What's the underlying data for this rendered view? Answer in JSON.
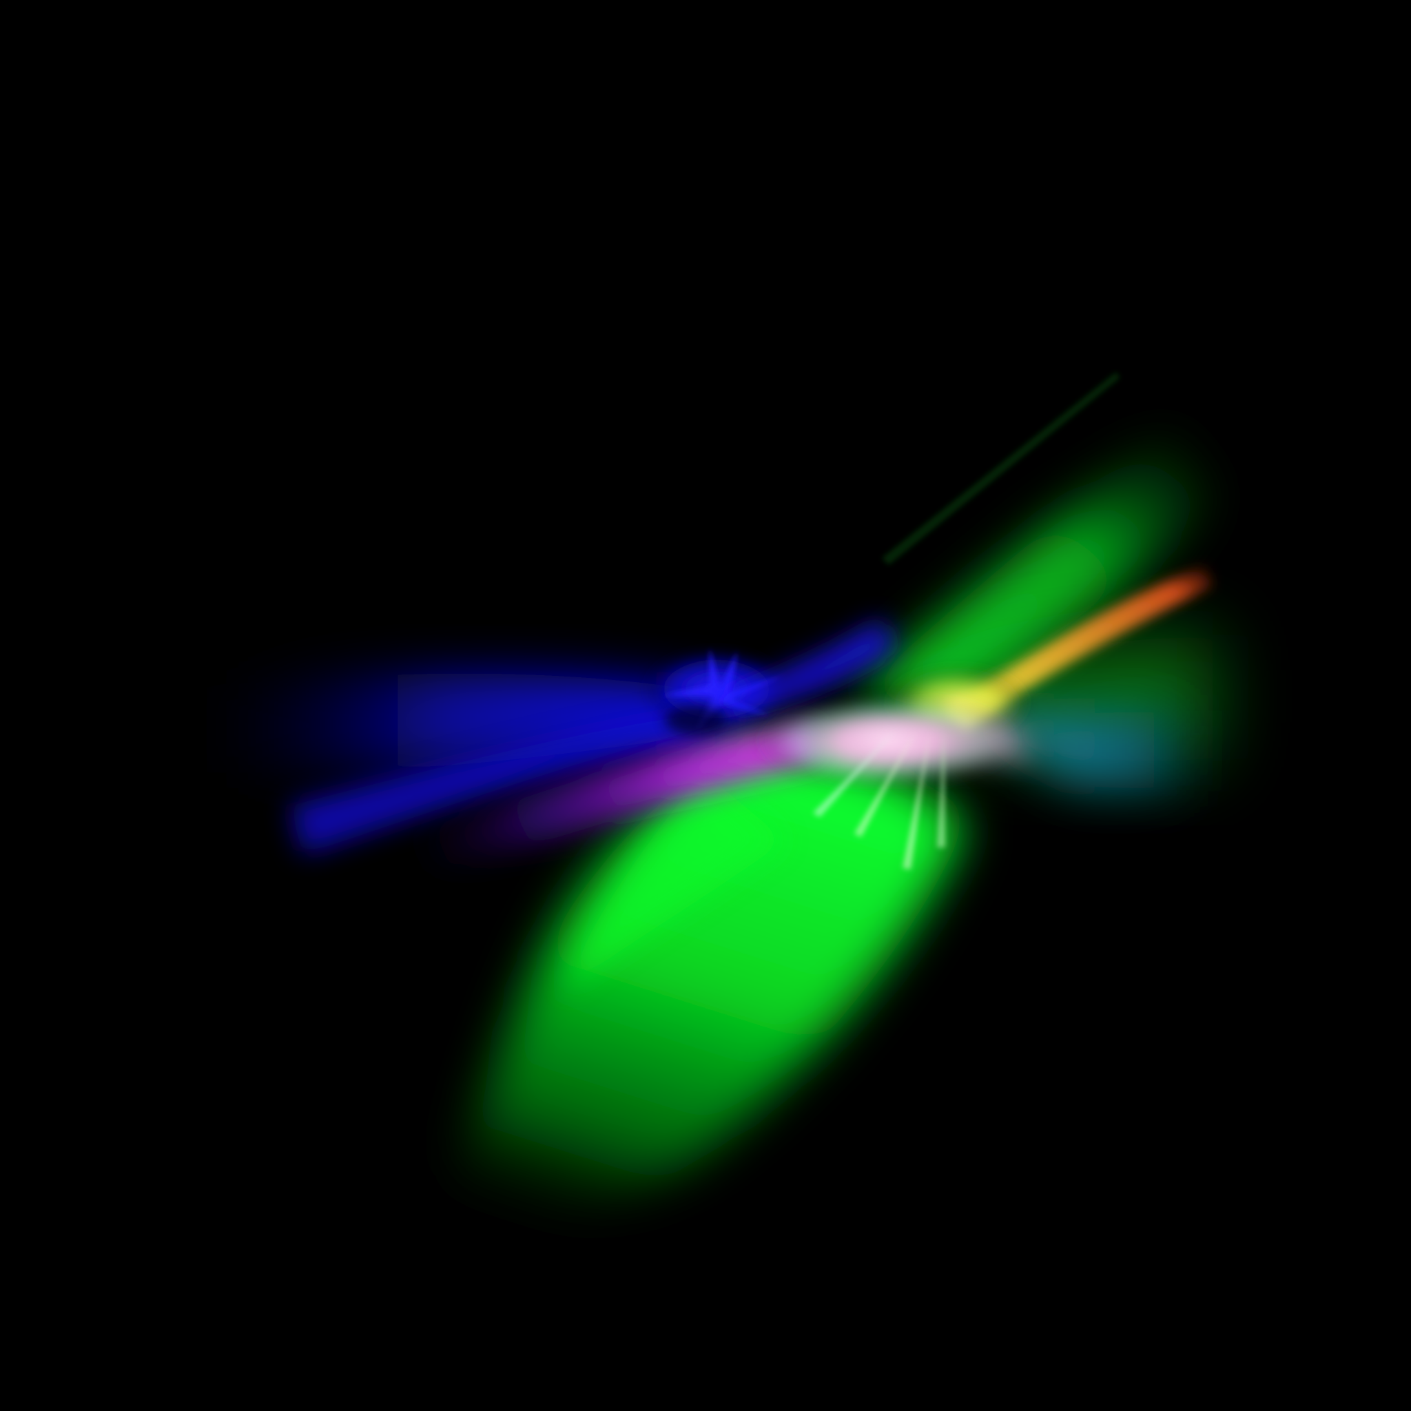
{
  "image": {
    "background_color": "#000000",
    "palette": {
      "blue": "#1a10ff",
      "deep_blue": "#0a0fd0",
      "magenta": "#d41ee6",
      "violet": "#6a12c8",
      "green": "#0dee28",
      "dark_green": "#04b014",
      "yellow": "#f6f23a",
      "orange": "#ff6a22",
      "pink": "#ffb8ea",
      "teal": "#1b8aa0",
      "white": "#ffffff"
    }
  }
}
